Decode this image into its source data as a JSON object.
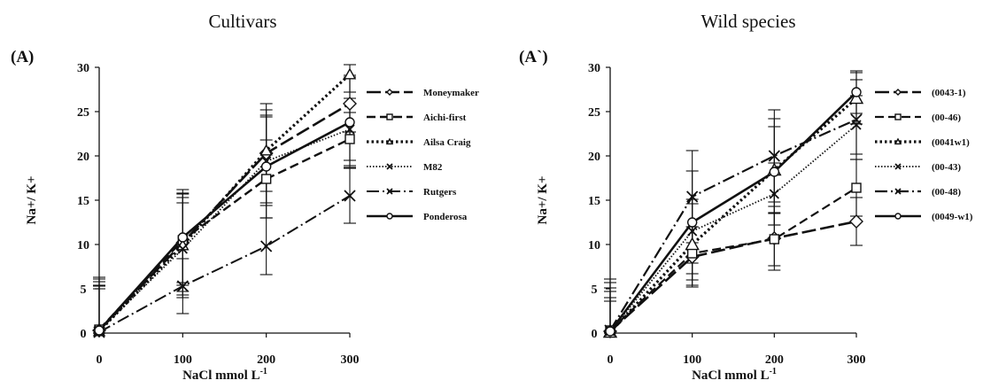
{
  "chart_data": [
    {
      "type": "line",
      "title": "Cultivars",
      "panel_label": "(A)",
      "xlabel": "NaCl mmol L",
      "xlabel_sup": "-1",
      "ylabel": "Na+/ K+",
      "x": [
        0,
        100,
        200,
        300
      ],
      "xticks": [
        "0",
        "100",
        "200",
        "300"
      ],
      "ylim": [
        0,
        30
      ],
      "yticks": [
        "0",
        "5",
        "10",
        "15",
        "20",
        "25",
        "30"
      ],
      "grid": false,
      "legend_position": "right",
      "series": [
        {
          "name": "Moneymaker",
          "values": [
            0.3,
            10.2,
            20.3,
            25.9
          ],
          "errors": [
            6.0,
            5.5,
            5.6,
            3.2
          ],
          "dash": "16 5",
          "width": 2.6,
          "marker": "diamond",
          "marker_size": 7
        },
        {
          "name": "Aichi-first",
          "values": [
            0.4,
            10.5,
            17.4,
            21.9
          ],
          "errors": [
            5.4,
            4.8,
            4.4,
            3.0
          ],
          "dash": "10 5",
          "width": 2.4,
          "marker": "square",
          "marker_size": 5
        },
        {
          "name": "Ailsa Craig",
          "values": [
            0.2,
            9.9,
            20.6,
            29.2
          ],
          "errors": [
            5.2,
            5.9,
            4.6,
            2.0
          ],
          "dash": "2.5 3",
          "width": 3.2,
          "marker": "triangle",
          "marker_size": 6
        },
        {
          "name": "M82",
          "values": [
            0.3,
            9.5,
            19.4,
            23.0
          ],
          "errors": [
            5.0,
            5.2,
            5.0,
            3.5
          ],
          "dash": "1.5 2",
          "width": 1.8,
          "marker": "x",
          "marker_size": 5
        },
        {
          "name": "Rutgers",
          "values": [
            0.1,
            5.3,
            9.8,
            15.5
          ],
          "errors": [
            4.9,
            3.1,
            3.2,
            3.1
          ],
          "dash": "14 4 2 4",
          "width": 2.0,
          "marker": "x",
          "marker_size": 6
        },
        {
          "name": "Ponderosa",
          "values": [
            0.3,
            10.8,
            18.8,
            23.8
          ],
          "errors": [
            5.8,
            5.4,
            5.8,
            5.1
          ],
          "dash": "",
          "width": 2.6,
          "marker": "circle",
          "marker_size": 5
        }
      ]
    },
    {
      "type": "line",
      "title": "Wild species",
      "panel_label": "(A`)",
      "xlabel": "NaCl mmol L",
      "xlabel_sup": "-1",
      "ylabel": "Na+/ K+",
      "x": [
        0,
        100,
        200,
        300
      ],
      "xticks": [
        "0",
        "100",
        "200",
        "300"
      ],
      "ylim": [
        0,
        30
      ],
      "yticks": [
        "0",
        "5",
        "10",
        "15",
        "20",
        "25",
        "30"
      ],
      "grid": false,
      "legend_position": "right",
      "series": [
        {
          "name": "(0043-1)",
          "values": [
            0.2,
            8.6,
            10.7,
            12.6
          ],
          "errors": [
            3.8,
            3.4,
            3.6,
            2.7
          ],
          "dash": "16 5",
          "width": 2.6,
          "marker": "diamond",
          "marker_size": 7
        },
        {
          "name": "(00-46)",
          "values": [
            0.3,
            9.0,
            10.6,
            16.4
          ],
          "errors": [
            3.3,
            3.0,
            3.0,
            3.2
          ],
          "dash": "10 5",
          "width": 2.2,
          "marker": "square",
          "marker_size": 5
        },
        {
          "name": "(0041w1)",
          "values": [
            0.1,
            10.0,
            18.4,
            26.5
          ],
          "errors": [
            5.0,
            4.6,
            4.9,
            2.9
          ],
          "dash": "2.5 3",
          "width": 3.2,
          "marker": "triangle",
          "marker_size": 7
        },
        {
          "name": "(00-43)",
          "values": [
            0.2,
            11.5,
            15.7,
            23.5
          ],
          "errors": [
            4.5,
            3.6,
            3.5,
            3.3
          ],
          "dash": "1.5 2",
          "width": 1.8,
          "marker": "x",
          "marker_size": 5
        },
        {
          "name": "(00-48)",
          "values": [
            0.3,
            15.4,
            20.0,
            24.1
          ],
          "errors": [
            5.8,
            5.2,
            5.2,
            4.5
          ],
          "dash": "14 4 2 4",
          "width": 2.2,
          "marker": "x",
          "marker_size": 6
        },
        {
          "name": "(0049-w1)",
          "values": [
            0.2,
            12.5,
            18.2,
            27.2
          ],
          "errors": [
            5.5,
            5.8,
            6.0,
            2.4
          ],
          "dash": "",
          "width": 2.6,
          "marker": "circle",
          "marker_size": 5
        }
      ]
    }
  ]
}
